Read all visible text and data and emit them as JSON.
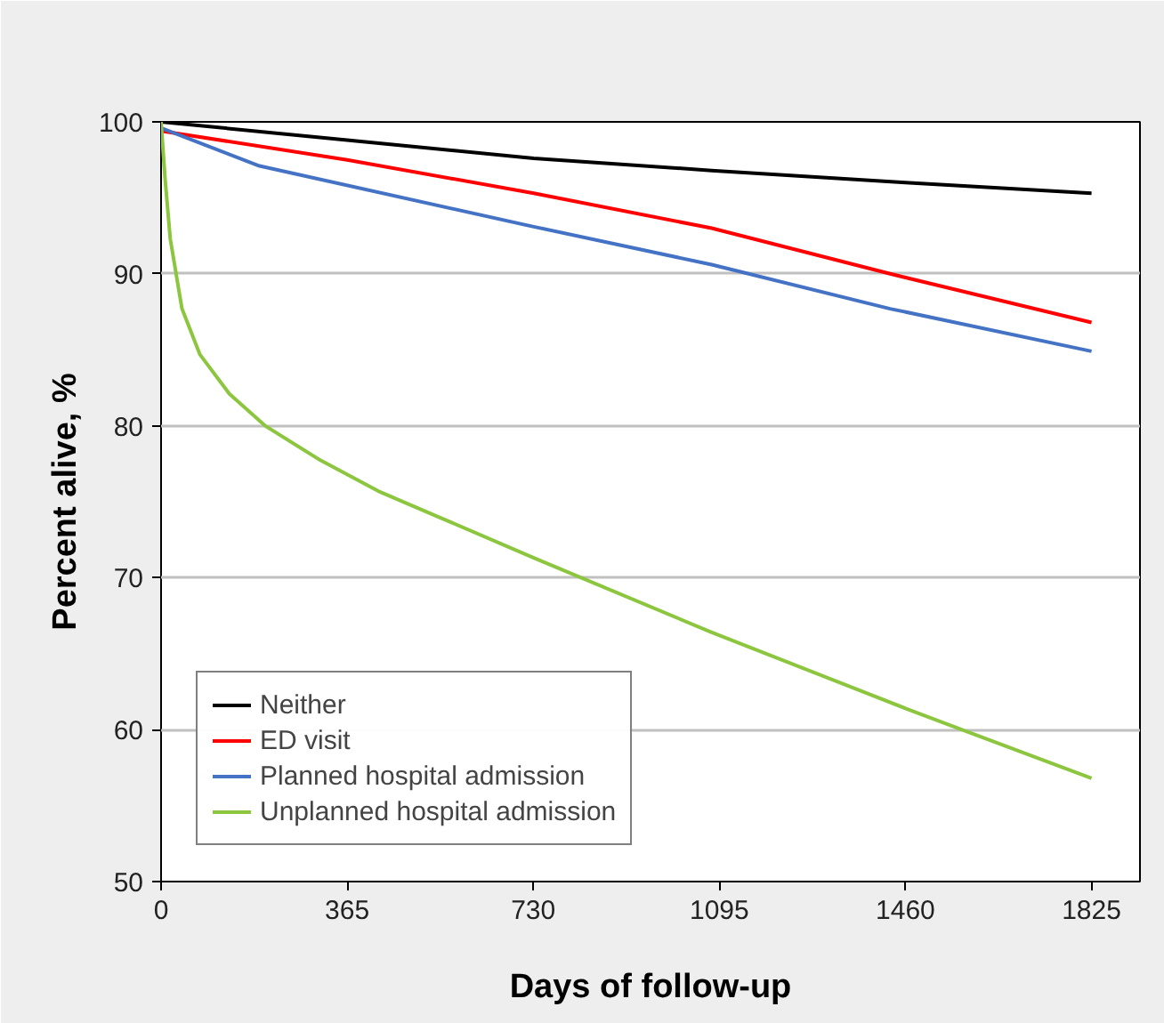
{
  "chart_data": {
    "type": "line",
    "xlabel": "Days of follow-up",
    "ylabel": "Percent alive, %",
    "xlim": [
      0,
      1920
    ],
    "ylim": [
      50,
      100
    ],
    "xticks": [
      0,
      365,
      730,
      1095,
      1460,
      1825
    ],
    "yticks": [
      50,
      60,
      70,
      80,
      90,
      100
    ],
    "grid": "y",
    "legend": "bottom left",
    "marker": "none",
    "line_style": "solid",
    "series": [
      {
        "name": "Neither",
        "color": "#000000",
        "x": [
          0,
          365,
          731,
          1080,
          1460,
          1825
        ],
        "values": [
          100,
          98.8,
          97.6,
          96.8,
          96.0,
          95.3
        ]
      },
      {
        "name": "ED visit",
        "color": "#ff0000",
        "x": [
          0,
          365,
          731,
          1080,
          1430,
          1825
        ],
        "values": [
          99.4,
          97.5,
          95.3,
          93.0,
          90.0,
          86.8
        ]
      },
      {
        "name": "Planned hospital admission",
        "color": "#4472c4",
        "x": [
          0,
          193,
          731,
          1080,
          1430,
          1825
        ],
        "values": [
          99.6,
          97.1,
          93.1,
          90.6,
          87.7,
          84.9
        ]
      },
      {
        "name": "Unplanned hospital admission",
        "color": "#8cc63f",
        "x": [
          0,
          8,
          18,
          41,
          76,
          134,
          204,
          309,
          426,
          544,
          731,
          1080,
          1460,
          1570,
          1825
        ],
        "values": [
          100,
          96.2,
          92.3,
          87.7,
          84.7,
          82.1,
          80.0,
          77.8,
          75.7,
          74.0,
          71.3,
          66.4,
          61.4,
          60.0,
          56.8
        ]
      }
    ]
  }
}
